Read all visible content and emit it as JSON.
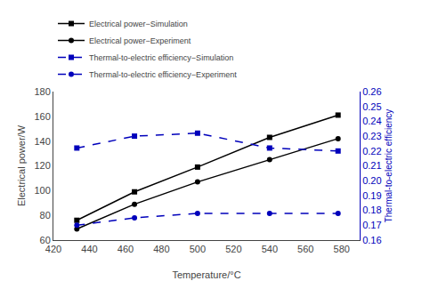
{
  "chart_data": {
    "type": "line",
    "xlabel": "Temperature/°C",
    "ylabel": "Electrical power/W",
    "y2label": "Thermal-to-electric efficiency",
    "x": [
      433,
      465,
      500,
      540,
      578
    ],
    "series": [
      {
        "name": "Electrical power−Simulation",
        "color": "#000000",
        "marker": "square",
        "line_style": "solid",
        "values": [
          76,
          99,
          119,
          143,
          161
        ]
      },
      {
        "name": "Electrical power−Experiment",
        "color": "#000000",
        "marker": "circle",
        "line_style": "solid",
        "values": [
          69,
          89,
          107,
          125,
          142
        ]
      },
      {
        "name": "Thermal-to-electric efficiency−Simulation",
        "color": "#0000bb",
        "marker": "square",
        "line_style": "dashed",
        "axis": "y2",
        "values": [
          0.222,
          0.23,
          0.232,
          0.222,
          0.22
        ]
      },
      {
        "name": "Thermal-to-electric efficiency−Experiment",
        "color": "#0000bb",
        "marker": "circle",
        "line_style": "dashed",
        "axis": "y2",
        "values": [
          0.17,
          0.175,
          0.178,
          0.178,
          0.178
        ]
      }
    ],
    "xlim": [
      420,
      590
    ],
    "xticks": [
      420,
      440,
      460,
      480,
      500,
      520,
      540,
      560,
      580
    ],
    "ylim": [
      60,
      180
    ],
    "yticks": [
      60,
      80,
      100,
      120,
      140,
      160,
      180
    ],
    "y2lim": [
      0.16,
      0.26
    ],
    "y2ticks": [
      0.16,
      0.17,
      0.18,
      0.19,
      {
        "value": 0.2,
        "label": "0.20"
      },
      0.21,
      0.22,
      0.23,
      0.24,
      0.25,
      0.26
    ],
    "grid": false,
    "legend": "upper left"
  }
}
